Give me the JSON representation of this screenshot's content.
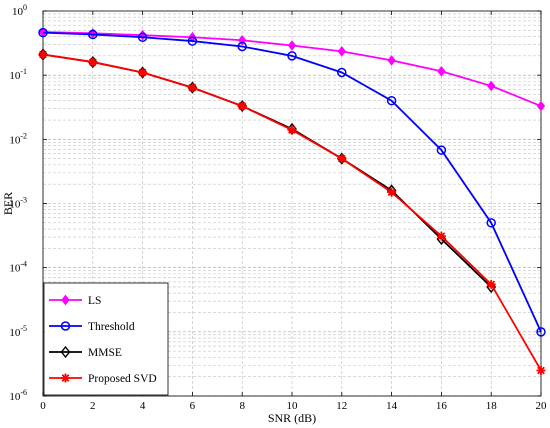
{
  "chart_data": {
    "type": "line",
    "title": "",
    "xlabel": "SNR (dB)",
    "ylabel": "BER",
    "xlim": [
      0,
      20
    ],
    "ylim": [
      1e-06,
      1
    ],
    "yscale": "log",
    "grid": true,
    "legend_position": "bottom-left",
    "x_ticks": [
      0,
      2,
      4,
      6,
      8,
      10,
      12,
      14,
      16,
      18,
      20
    ],
    "y_ticks": [
      {
        "base": "10",
        "exp": "0",
        "value": 1
      },
      {
        "base": "10",
        "exp": "-1",
        "value": 0.1
      },
      {
        "base": "10",
        "exp": "-2",
        "value": 0.01
      },
      {
        "base": "10",
        "exp": "-3",
        "value": 0.001
      },
      {
        "base": "10",
        "exp": "-4",
        "value": 0.0001
      },
      {
        "base": "10",
        "exp": "-5",
        "value": 1e-05
      },
      {
        "base": "10",
        "exp": "-6",
        "value": 1e-06
      }
    ],
    "series": [
      {
        "name": "LS",
        "color": "#ff00ff",
        "marker": "diamond-filled",
        "x": [
          0,
          2,
          4,
          6,
          8,
          10,
          12,
          14,
          16,
          18,
          20
        ],
        "y": [
          0.47,
          0.45,
          0.42,
          0.39,
          0.35,
          0.29,
          0.235,
          0.17,
          0.115,
          0.068,
          0.033
        ]
      },
      {
        "name": "Threshold",
        "color": "#0000ff",
        "marker": "circle-open",
        "x": [
          0,
          2,
          4,
          6,
          8,
          10,
          12,
          14,
          16,
          18,
          20
        ],
        "y": [
          0.46,
          0.43,
          0.39,
          0.34,
          0.28,
          0.2,
          0.11,
          0.04,
          0.0068,
          0.0005,
          1e-05
        ]
      },
      {
        "name": "MMSE",
        "color": "#000000",
        "marker": "diamond-open",
        "x": [
          0,
          2,
          4,
          6,
          8,
          10,
          12,
          14,
          16,
          18
        ],
        "y": [
          0.21,
          0.16,
          0.11,
          0.064,
          0.033,
          0.0145,
          0.005,
          0.0016,
          0.00028,
          5e-05
        ]
      },
      {
        "name": "Proposed SVD",
        "color": "#ff0000",
        "marker": "star",
        "x": [
          0,
          2,
          4,
          6,
          8,
          10,
          12,
          14,
          16,
          18,
          20
        ],
        "y": [
          0.21,
          0.16,
          0.11,
          0.064,
          0.033,
          0.014,
          0.005,
          0.0015,
          0.00031,
          5.5e-05,
          2.5e-06
        ]
      }
    ]
  }
}
